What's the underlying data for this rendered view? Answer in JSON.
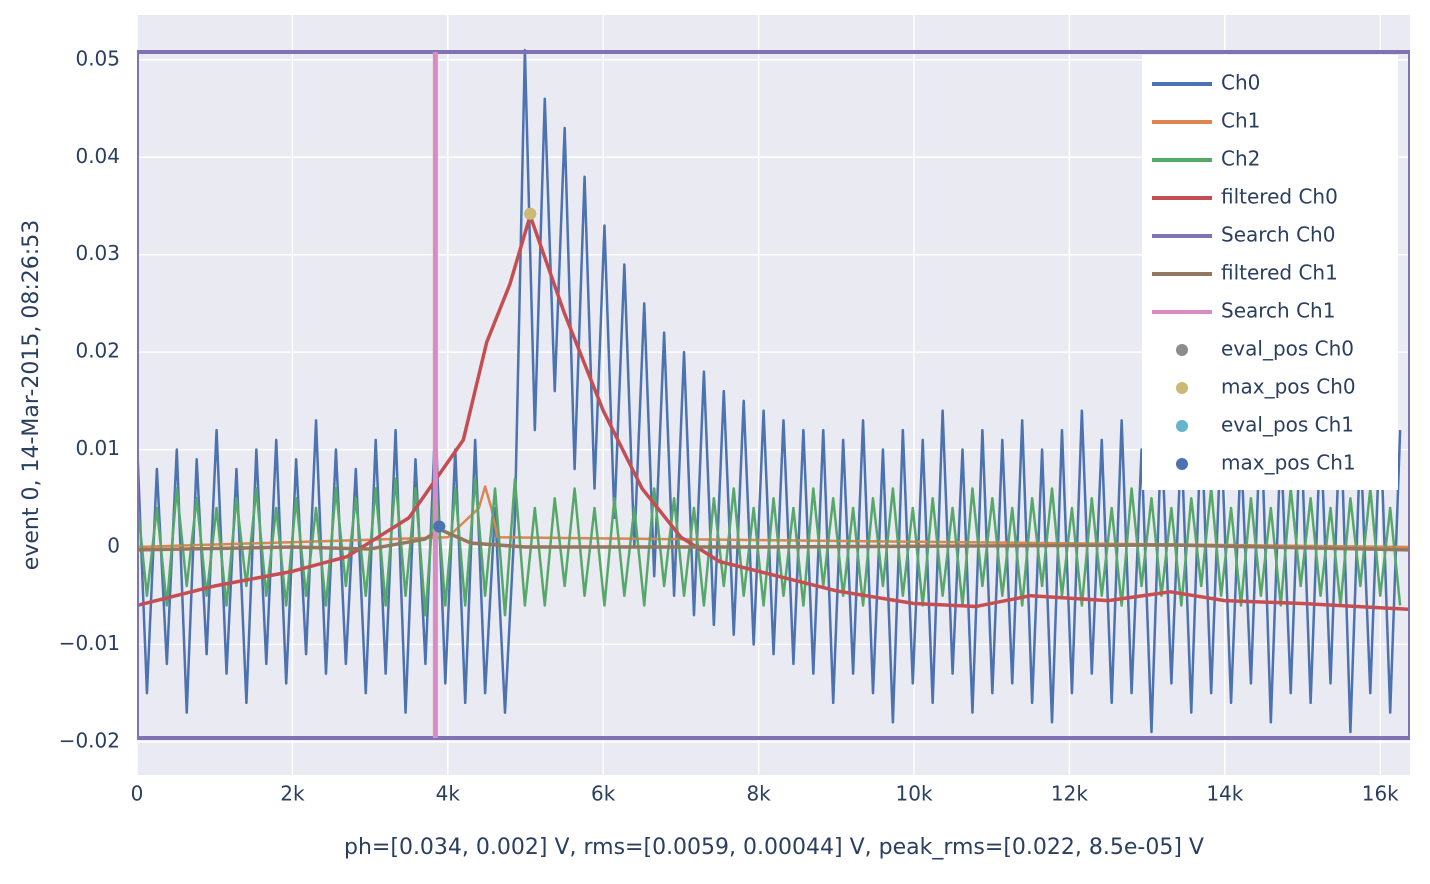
{
  "chart_data": {
    "type": "line",
    "y_label": "event 0, 14-Mar-2015, 08:26:53",
    "x_label": "ph=[0.034, 0.002] V, rms=[0.0059, 0.00044] V, peak_rms=[0.022, 8.5e-05] V",
    "xlim": [
      0,
      16383
    ],
    "ylim": [
      -0.0234,
      0.0546
    ],
    "xticks": [
      0,
      {
        "value": 2000,
        "label": "2k"
      },
      {
        "value": 4000,
        "label": "4k"
      },
      {
        "value": 6000,
        "label": "6k"
      },
      {
        "value": 8000,
        "label": "8k"
      },
      {
        "value": 10000,
        "label": "10k"
      },
      {
        "value": 12000,
        "label": "12k"
      },
      {
        "value": 14000,
        "label": "14k"
      },
      {
        "value": 16000,
        "label": "16k"
      }
    ],
    "yticks": [
      {
        "value": -0.02,
        "label": "−0.02"
      },
      {
        "value": -0.01,
        "label": "−0.01"
      },
      0,
      0.01,
      0.02,
      0.03,
      0.04,
      0.05
    ],
    "grid": true,
    "legend": "upper right",
    "x": [
      0,
      128,
      256,
      384,
      512,
      640,
      768,
      896,
      1024,
      1152,
      1280,
      1408,
      1536,
      1664,
      1792,
      1920,
      2048,
      2176,
      2304,
      2432,
      2560,
      2688,
      2816,
      2944,
      3072,
      3200,
      3328,
      3456,
      3584,
      3712,
      3840,
      3968,
      4096,
      4224,
      4352,
      4480,
      4608,
      4736,
      4864,
      4992,
      5120,
      5248,
      5376,
      5504,
      5632,
      5760,
      5888,
      6016,
      6144,
      6272,
      6400,
      6528,
      6656,
      6784,
      6912,
      7040,
      7168,
      7296,
      7424,
      7552,
      7680,
      7808,
      7936,
      8064,
      8192,
      8320,
      8448,
      8576,
      8704,
      8832,
      8960,
      9088,
      9216,
      9344,
      9472,
      9600,
      9728,
      9856,
      9984,
      10112,
      10240,
      10368,
      10496,
      10624,
      10752,
      10880,
      11008,
      11136,
      11264,
      11392,
      11520,
      11648,
      11776,
      11904,
      12032,
      12160,
      12288,
      12416,
      12544,
      12672,
      12800,
      12928,
      13056,
      13184,
      13312,
      13440,
      13568,
      13696,
      13824,
      13952,
      14080,
      14208,
      14336,
      14464,
      14592,
      14720,
      14848,
      14976,
      15104,
      15232,
      15360,
      15488,
      15616,
      15744,
      15872,
      16000,
      16128,
      16256
    ],
    "series": [
      {
        "name": "Ch0",
        "color": "#4C72B0",
        "width": 2.5,
        "values": [
          0.011,
          -0.015,
          0.008,
          -0.012,
          0.01,
          -0.017,
          0.009,
          -0.011,
          0.012,
          -0.013,
          0.008,
          -0.016,
          0.01,
          -0.012,
          0.011,
          -0.014,
          0.009,
          -0.011,
          0.013,
          -0.013,
          0.01,
          -0.012,
          0.008,
          -0.015,
          0.011,
          -0.013,
          0.012,
          -0.017,
          0.009,
          -0.012,
          0.013,
          -0.014,
          0.01,
          -0.016,
          0.011,
          -0.015,
          0.004,
          -0.017,
          0.003,
          0.051,
          0.012,
          0.046,
          0.016,
          0.043,
          0.008,
          0.038,
          0.006,
          0.033,
          0.003,
          0.029,
          0,
          0.025,
          -0.003,
          0.022,
          -0.005,
          0.02,
          -0.007,
          0.018,
          -0.008,
          0.016,
          -0.009,
          0.015,
          -0.01,
          0.014,
          -0.011,
          0.013,
          -0.012,
          0.012,
          -0.013,
          0.012,
          -0.016,
          0.011,
          -0.013,
          0.013,
          -0.015,
          0.01,
          -0.018,
          0.012,
          -0.014,
          0.011,
          -0.016,
          0.014,
          -0.013,
          0.01,
          -0.017,
          0.012,
          -0.015,
          0.011,
          -0.014,
          0.013,
          -0.016,
          0.01,
          -0.018,
          0.012,
          -0.015,
          0.014,
          -0.013,
          0.011,
          -0.016,
          0.013,
          -0.015,
          0.01,
          -0.019,
          0.012,
          -0.014,
          0.011,
          -0.017,
          0.013,
          -0.015,
          0.012,
          -0.016,
          0.01,
          -0.014,
          0.014,
          -0.018,
          0.011,
          -0.015,
          0.013,
          -0.016,
          0.012,
          -0.014,
          0.014,
          -0.019,
          0.011,
          -0.015,
          0.013,
          -0.017,
          0.012
        ]
      },
      {
        "name": "Ch1",
        "color": "#DD8452",
        "width": 2.5,
        "x": [
          0,
          4000,
          4400,
          4480,
          4560,
          4640,
          16383
        ],
        "values": [
          0,
          0.001,
          0.004,
          0.0062,
          0.004,
          0.001,
          0
        ]
      },
      {
        "name": "Ch2",
        "color": "#55A868",
        "width": 2.5,
        "values": [
          0.005,
          -0.005,
          0.004,
          -0.006,
          0.006,
          -0.004,
          0.005,
          -0.005,
          0.004,
          -0.006,
          0.005,
          -0.004,
          0.006,
          -0.005,
          0.004,
          -0.006,
          0.005,
          -0.005,
          0.004,
          -0.006,
          0.006,
          -0.004,
          0.005,
          -0.005,
          0.006,
          -0.006,
          0.007,
          -0.005,
          0.006,
          -0.007,
          0.007,
          -0.006,
          0.006,
          -0.006,
          0.007,
          -0.005,
          0.006,
          -0.007,
          0.007,
          -0.006,
          0.004,
          -0.006,
          0.005,
          -0.004,
          0.006,
          -0.005,
          0.004,
          -0.006,
          0.005,
          -0.005,
          0.004,
          -0.006,
          0.006,
          -0.004,
          0.005,
          -0.005,
          0.004,
          -0.006,
          0.005,
          -0.004,
          0.006,
          -0.005,
          0.004,
          -0.006,
          0.005,
          -0.005,
          0.004,
          -0.006,
          0.006,
          -0.004,
          0.005,
          -0.005,
          0.004,
          -0.006,
          0.005,
          -0.004,
          0.006,
          -0.005,
          0.004,
          -0.006,
          0.005,
          -0.005,
          0.004,
          -0.006,
          0.006,
          -0.004,
          0.005,
          -0.005,
          0.004,
          -0.006,
          0.005,
          -0.004,
          0.006,
          -0.005,
          0.004,
          -0.006,
          0.005,
          -0.005,
          0.004,
          -0.006,
          0.006,
          -0.004,
          0.005,
          -0.005,
          0.004,
          -0.006,
          0.005,
          -0.004,
          0.006,
          -0.005,
          0.004,
          -0.006,
          0.005,
          -0.005,
          0.004,
          -0.006,
          0.006,
          -0.004,
          0.005,
          -0.005,
          0.004,
          -0.006,
          0.005,
          -0.004,
          0.006,
          -0.005,
          0.004,
          -0.006
        ]
      },
      {
        "name": "filtered Ch0",
        "color": "#C44E52",
        "width": 3.5,
        "x": [
          0,
          1000,
          2000,
          2700,
          3500,
          4200,
          4500,
          4800,
          5060,
          5500,
          6000,
          6500,
          7000,
          7500,
          8000,
          8500,
          9000,
          10000,
          10800,
          11500,
          12500,
          13300,
          14000,
          15000,
          16383
        ],
        "values": [
          -0.006,
          -0.004,
          -0.0025,
          -0.001,
          0.003,
          0.011,
          0.021,
          0.027,
          0.034,
          0.024,
          0.014,
          0.006,
          0.001,
          -0.0015,
          -0.0025,
          -0.0035,
          -0.0045,
          -0.0058,
          -0.0061,
          -0.005,
          -0.0055,
          -0.0046,
          -0.0055,
          -0.0058,
          -0.0064
        ]
      },
      {
        "name": "Search Ch0",
        "color": "#8172B3",
        "width": 4,
        "x": [
          0,
          16383,
          16383,
          0,
          0
        ],
        "values": [
          0.0508,
          0.0508,
          -0.0196,
          -0.0196,
          0.0508
        ]
      },
      {
        "name": "filtered Ch1",
        "color": "#937860",
        "width": 3.5,
        "x": [
          0,
          2000,
          3000,
          3700,
          3900,
          4300,
          5000,
          8000,
          13300,
          16383
        ],
        "values": [
          -0.0003,
          0,
          -0.0002,
          0.0008,
          0.0018,
          0.0004,
          0,
          0,
          0.0002,
          -0.0003
        ]
      },
      {
        "name": "Search Ch1",
        "color": "#DA8BC3",
        "width": 5,
        "x": [
          3840,
          3840
        ],
        "values": [
          -0.0196,
          0.0508
        ]
      },
      {
        "name": "eval_pos Ch0",
        "color": "#8C8C8C",
        "mode": "markers",
        "x": [
          5060
        ],
        "values": [
          0.0342
        ]
      },
      {
        "name": "max_pos Ch0",
        "color": "#CCB974",
        "mode": "markers",
        "x": [
          5060
        ],
        "values": [
          0.0342
        ]
      },
      {
        "name": "eval_pos Ch1",
        "color": "#64B5CD",
        "mode": "markers",
        "x": [
          3890
        ],
        "values": [
          0.0021
        ]
      },
      {
        "name": "max_pos Ch1",
        "color": "#4C72B0",
        "mode": "markers",
        "x": [
          3890
        ],
        "values": [
          0.0021
        ]
      }
    ]
  }
}
